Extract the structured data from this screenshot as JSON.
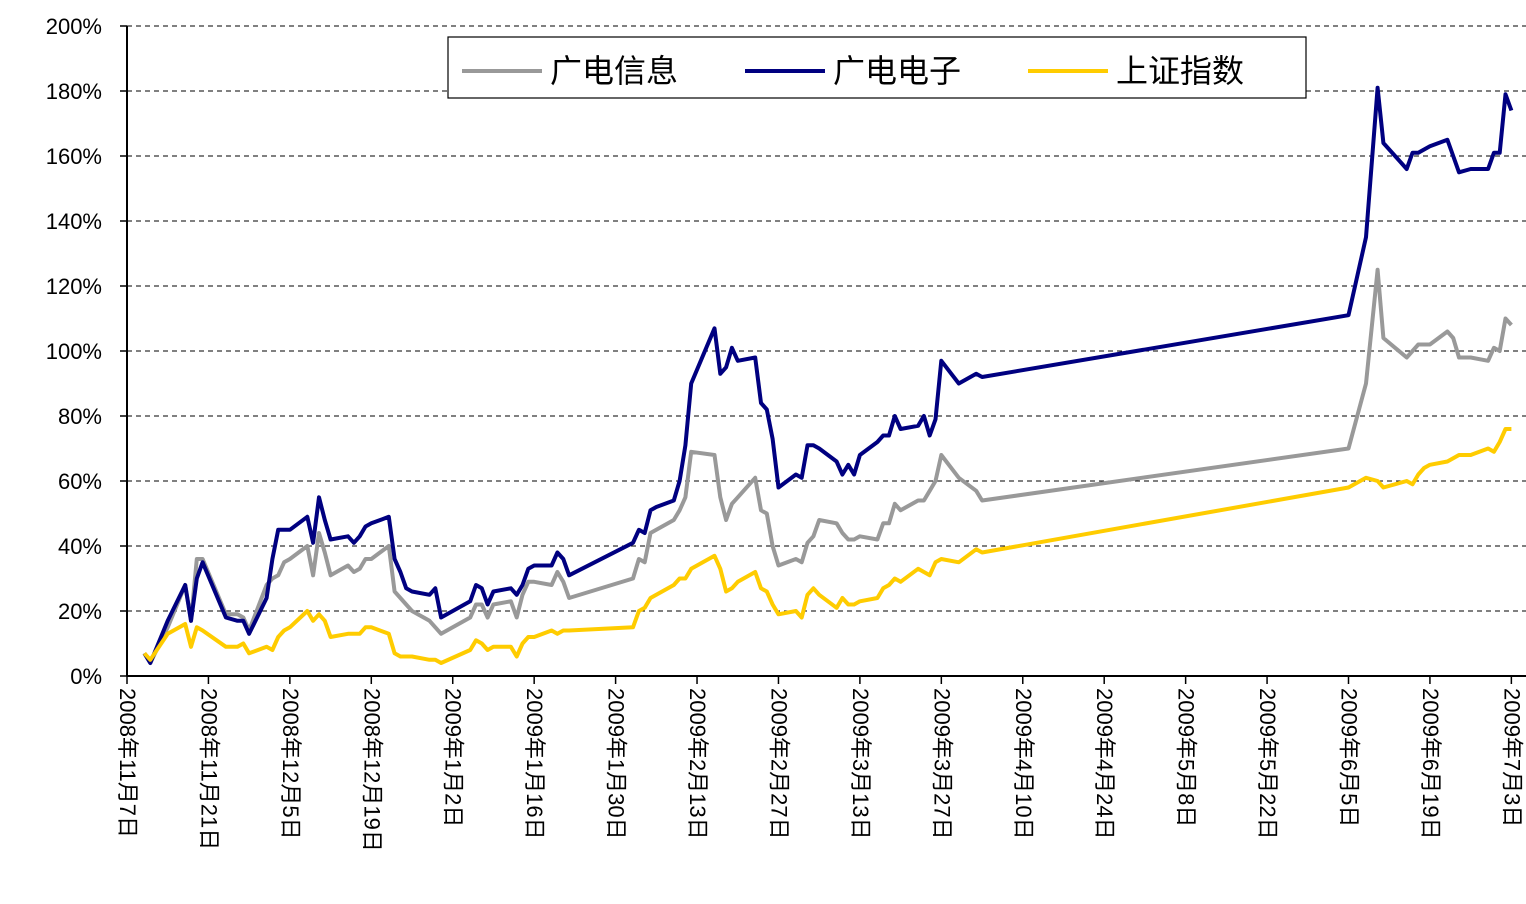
{
  "chart_data": {
    "type": "line",
    "x": [
      "2008-11-10",
      "2008-11-11",
      "2008-11-14",
      "2008-11-17",
      "2008-11-18",
      "2008-11-19",
      "2008-11-20",
      "2008-11-24",
      "2008-11-26",
      "2008-11-27",
      "2008-11-28",
      "2008-12-01",
      "2008-12-02",
      "2008-12-03",
      "2008-12-04",
      "2008-12-05",
      "2008-12-08",
      "2008-12-09",
      "2008-12-10",
      "2008-12-11",
      "2008-12-12",
      "2008-12-15",
      "2008-12-16",
      "2008-12-17",
      "2008-12-18",
      "2008-12-19",
      "2008-12-22",
      "2008-12-23",
      "2008-12-24",
      "2008-12-25",
      "2008-12-26",
      "2008-12-29",
      "2008-12-30",
      "2008-12-31",
      "2009-01-05",
      "2009-01-06",
      "2009-01-07",
      "2009-01-08",
      "2009-01-09",
      "2009-01-12",
      "2009-01-13",
      "2009-01-14",
      "2009-01-15",
      "2009-01-16",
      "2009-01-19",
      "2009-01-20",
      "2009-01-21",
      "2009-01-22",
      "2009-02-02",
      "2009-02-03",
      "2009-02-04",
      "2009-02-05",
      "2009-02-06",
      "2009-02-09",
      "2009-02-10",
      "2009-02-11",
      "2009-02-12",
      "2009-02-16",
      "2009-02-17",
      "2009-02-18",
      "2009-02-19",
      "2009-02-20",
      "2009-02-23",
      "2009-02-24",
      "2009-02-25",
      "2009-02-26",
      "2009-02-27",
      "2009-03-02",
      "2009-03-03",
      "2009-03-04",
      "2009-03-05",
      "2009-03-06",
      "2009-03-09",
      "2009-03-10",
      "2009-03-11",
      "2009-03-12",
      "2009-03-13",
      "2009-03-16",
      "2009-03-17",
      "2009-03-18",
      "2009-03-19",
      "2009-03-20",
      "2009-03-23",
      "2009-03-24",
      "2009-03-25",
      "2009-03-26",
      "2009-03-27",
      "2009-03-30",
      "2009-04-02",
      "2009-04-03",
      "2009-06-05",
      "2009-06-08",
      "2009-06-10",
      "2009-06-11",
      "2009-06-15",
      "2009-06-16",
      "2009-06-17",
      "2009-06-18",
      "2009-06-19",
      "2009-06-22",
      "2009-06-23",
      "2009-06-24",
      "2009-06-26",
      "2009-06-29",
      "2009-06-30",
      "2009-07-01",
      "2009-07-02",
      "2009-07-03"
    ],
    "series": [
      {
        "name": "广电信息",
        "color": "#999999",
        "values": [
          7,
          4,
          15,
          28,
          17,
          36,
          36,
          19,
          19,
          18,
          14,
          28,
          30,
          31,
          35,
          36,
          40,
          31,
          44,
          38,
          31,
          34,
          32,
          33,
          36,
          36,
          40,
          26,
          24,
          22,
          20,
          17,
          15,
          13,
          18,
          22,
          22,
          18,
          22,
          23,
          18,
          25,
          29,
          29,
          28,
          32,
          29,
          24,
          30,
          36,
          35,
          44,
          45,
          48,
          51,
          55,
          69,
          68,
          55,
          48,
          53,
          55,
          61,
          51,
          50,
          40,
          34,
          36,
          35,
          41,
          43,
          48,
          47,
          44,
          42,
          42,
          43,
          42,
          47,
          47,
          53,
          51,
          54,
          54,
          57,
          60,
          68,
          61,
          57,
          54,
          70,
          90,
          125,
          104,
          98,
          100,
          102,
          102,
          102,
          106,
          104,
          98,
          98,
          97,
          101,
          100,
          110,
          108
        ]
      },
      {
        "name": "广电电子",
        "color": "#000080",
        "values": [
          7,
          4,
          17,
          28,
          17,
          30,
          35,
          18,
          17,
          17,
          13,
          24,
          36,
          45,
          45,
          45,
          49,
          41,
          55,
          48,
          42,
          43,
          41,
          43,
          46,
          47,
          49,
          36,
          32,
          27,
          26,
          25,
          27,
          18,
          23,
          28,
          27,
          22,
          26,
          27,
          25,
          28,
          33,
          34,
          34,
          38,
          36,
          31,
          41,
          45,
          44,
          51,
          52,
          54,
          60,
          71,
          90,
          107,
          93,
          95,
          101,
          97,
          98,
          84,
          82,
          73,
          58,
          62,
          61,
          71,
          71,
          70,
          66,
          62,
          65,
          62,
          68,
          72,
          74,
          74,
          80,
          76,
          77,
          80,
          74,
          79,
          97,
          90,
          93,
          92,
          111,
          135,
          181,
          164,
          156,
          161,
          161,
          162,
          163,
          165,
          160,
          155,
          156,
          156,
          161,
          161,
          179,
          174
        ]
      },
      {
        "name": "上证指数",
        "color": "#ffcc00",
        "values": [
          7,
          5,
          13,
          16,
          9,
          15,
          14,
          9,
          9,
          10,
          7,
          9,
          8,
          12,
          14,
          15,
          20,
          17,
          19,
          17,
          12,
          13,
          13,
          13,
          15,
          15,
          13,
          7,
          6,
          6,
          6,
          5,
          5,
          4,
          8,
          11,
          10,
          8,
          9,
          9,
          6,
          10,
          12,
          12,
          14,
          13,
          14,
          14,
          15,
          20,
          21,
          24,
          25,
          28,
          30,
          30,
          33,
          37,
          33,
          26,
          27,
          29,
          32,
          27,
          26,
          22,
          19,
          20,
          18,
          25,
          27,
          25,
          21,
          24,
          22,
          22,
          23,
          24,
          27,
          28,
          30,
          29,
          33,
          32,
          31,
          35,
          36,
          35,
          39,
          38,
          58,
          61,
          60,
          58,
          60,
          59,
          62,
          64,
          65,
          66,
          67,
          68,
          68,
          70,
          69,
          72,
          76,
          76
        ]
      }
    ],
    "xlim": [
      "2008-11-07",
      "2009-07-05"
    ],
    "xticks": [
      {
        "value": "2008-11-07",
        "label": "2008年11月7日"
      },
      {
        "value": "2008-11-21",
        "label": "2008年11月21日"
      },
      {
        "value": "2008-12-05",
        "label": "2008年12月5日"
      },
      {
        "value": "2008-12-19",
        "label": "2008年12月19日"
      },
      {
        "value": "2009-01-02",
        "label": "2009年1月2日"
      },
      {
        "value": "2009-01-16",
        "label": "2009年1月16日"
      },
      {
        "value": "2009-01-30",
        "label": "2009年1月30日"
      },
      {
        "value": "2009-02-13",
        "label": "2009年2月13日"
      },
      {
        "value": "2009-02-27",
        "label": "2009年2月27日"
      },
      {
        "value": "2009-03-13",
        "label": "2009年3月13日"
      },
      {
        "value": "2009-03-27",
        "label": "2009年3月27日"
      },
      {
        "value": "2009-04-10",
        "label": "2009年4月10日"
      },
      {
        "value": "2009-04-24",
        "label": "2009年4月24日"
      },
      {
        "value": "2009-05-08",
        "label": "2009年5月8日"
      },
      {
        "value": "2009-05-22",
        "label": "2009年5月22日"
      },
      {
        "value": "2009-06-05",
        "label": "2009年6月5日"
      },
      {
        "value": "2009-06-19",
        "label": "2009年6月19日"
      },
      {
        "value": "2009-07-03",
        "label": "2009年7月3日"
      }
    ],
    "ylim": [
      0,
      200
    ],
    "yticks": [
      {
        "value": 0,
        "label": "0%"
      },
      {
        "value": 20,
        "label": "20%"
      },
      {
        "value": 40,
        "label": "40%"
      },
      {
        "value": 60,
        "label": "60%"
      },
      {
        "value": 80,
        "label": "80%"
      },
      {
        "value": 100,
        "label": "100%"
      },
      {
        "value": 120,
        "label": "120%"
      },
      {
        "value": 140,
        "label": "140%"
      },
      {
        "value": 160,
        "label": "160%"
      },
      {
        "value": 180,
        "label": "180%"
      },
      {
        "value": 200,
        "label": "200%"
      }
    ],
    "grid": true,
    "legend": "top"
  }
}
